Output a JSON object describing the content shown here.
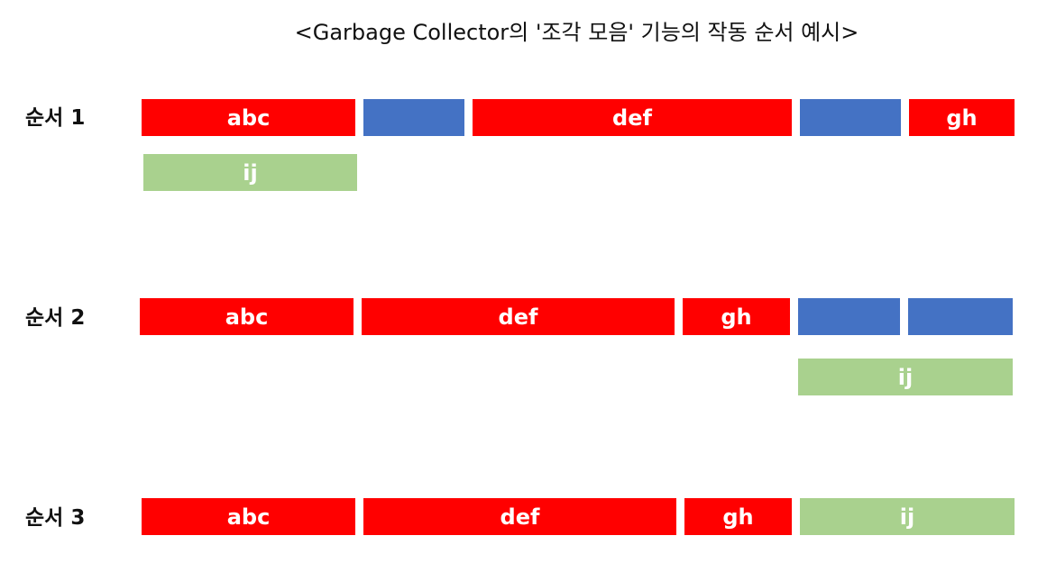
{
  "title": "<Garbage Collector의 '조각 모음' 기능의 작동 순서 예시>",
  "colors": {
    "used": "#ff0000",
    "free": "#4472c4",
    "new": "#a9d18e",
    "label_text": "#ffffff"
  },
  "steps": [
    {
      "label": "순서 1",
      "blocks": [
        {
          "type": "used",
          "label": "abc"
        },
        {
          "type": "free",
          "label": ""
        },
        {
          "type": "used",
          "label": "def"
        },
        {
          "type": "free",
          "label": ""
        },
        {
          "type": "used",
          "label": "gh"
        },
        {
          "type": "new",
          "label": "ij"
        }
      ]
    },
    {
      "label": "순서 2",
      "blocks": [
        {
          "type": "used",
          "label": "abc"
        },
        {
          "type": "used",
          "label": "def"
        },
        {
          "type": "used",
          "label": "gh"
        },
        {
          "type": "free",
          "label": ""
        },
        {
          "type": "free",
          "label": ""
        },
        {
          "type": "new",
          "label": "ij"
        }
      ]
    },
    {
      "label": "순서 3",
      "blocks": [
        {
          "type": "used",
          "label": "abc"
        },
        {
          "type": "used",
          "label": "def"
        },
        {
          "type": "used",
          "label": "gh"
        },
        {
          "type": "new",
          "label": "ij"
        }
      ]
    }
  ]
}
